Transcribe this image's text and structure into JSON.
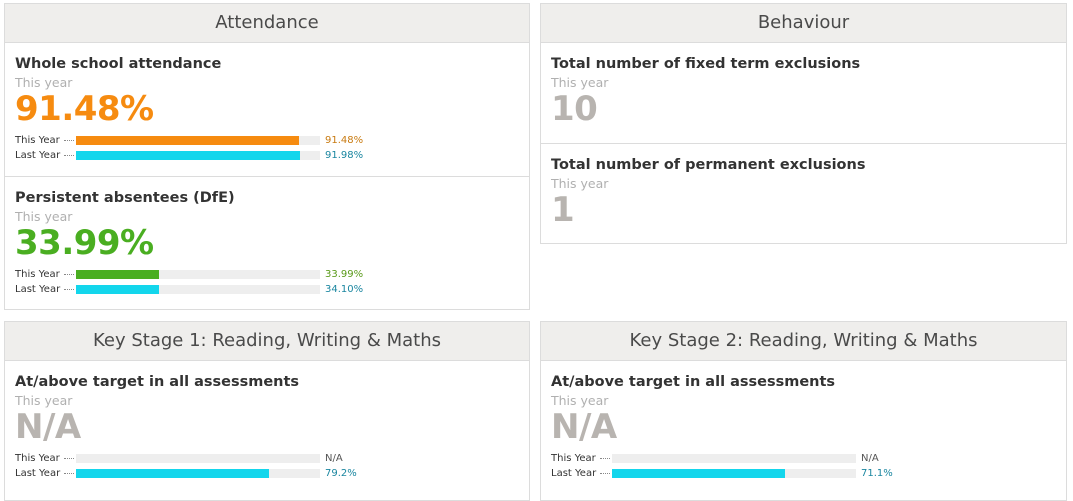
{
  "attendance": {
    "title": "Attendance",
    "metrics": [
      {
        "title": "Whole school attendance",
        "subtitle": "This year",
        "value": "91.48%",
        "color": "#f68b10",
        "bars": [
          {
            "label": "This Year",
            "value_text": "91.48%",
            "fraction": 0.9148,
            "color": "#f68b10",
            "text_color": "#c87a10"
          },
          {
            "label": "Last Year",
            "value_text": "91.98%",
            "fraction": 0.9198,
            "color": "#13d6ec",
            "text_color": "#1a86a0"
          }
        ]
      },
      {
        "title": "Persistent absentees (DfE)",
        "subtitle": "This year",
        "value": "33.99%",
        "color": "#4aae21",
        "bars": [
          {
            "label": "This Year",
            "value_text": "33.99%",
            "fraction": 0.3399,
            "color": "#4aae21",
            "text_color": "#5a9a1a"
          },
          {
            "label": "Last Year",
            "value_text": "34.10%",
            "fraction": 0.341,
            "color": "#13d6ec",
            "text_color": "#1a86a0"
          }
        ]
      }
    ]
  },
  "behaviour": {
    "title": "Behaviour",
    "metrics": [
      {
        "title": "Total number of fixed term exclusions",
        "subtitle": "This year",
        "value": "10",
        "color": "#b8b4b0"
      },
      {
        "title": "Total number of permanent exclusions",
        "subtitle": "This year",
        "value": "1",
        "color": "#b8b4b0"
      }
    ]
  },
  "ks1": {
    "title": "Key Stage 1: Reading, Writing & Maths",
    "metrics": [
      {
        "title": "At/above target in all assessments",
        "subtitle": "This year",
        "value": "N/A",
        "color": "#b8b4b0",
        "bars": [
          {
            "label": "This Year",
            "value_text": "N/A",
            "fraction": 0,
            "color": "#13d6ec",
            "text_color": "#555555"
          },
          {
            "label": "Last Year",
            "value_text": "79.2%",
            "fraction": 0.792,
            "color": "#13d6ec",
            "text_color": "#1a86a0"
          }
        ]
      }
    ]
  },
  "ks2": {
    "title": "Key Stage 2: Reading, Writing & Maths",
    "metrics": [
      {
        "title": "At/above target in all assessments",
        "subtitle": "This year",
        "value": "N/A",
        "color": "#b8b4b0",
        "bars": [
          {
            "label": "This Year",
            "value_text": "N/A",
            "fraction": 0,
            "color": "#13d6ec",
            "text_color": "#555555"
          },
          {
            "label": "Last Year",
            "value_text": "71.1%",
            "fraction": 0.711,
            "color": "#13d6ec",
            "text_color": "#1a86a0"
          }
        ]
      }
    ]
  }
}
